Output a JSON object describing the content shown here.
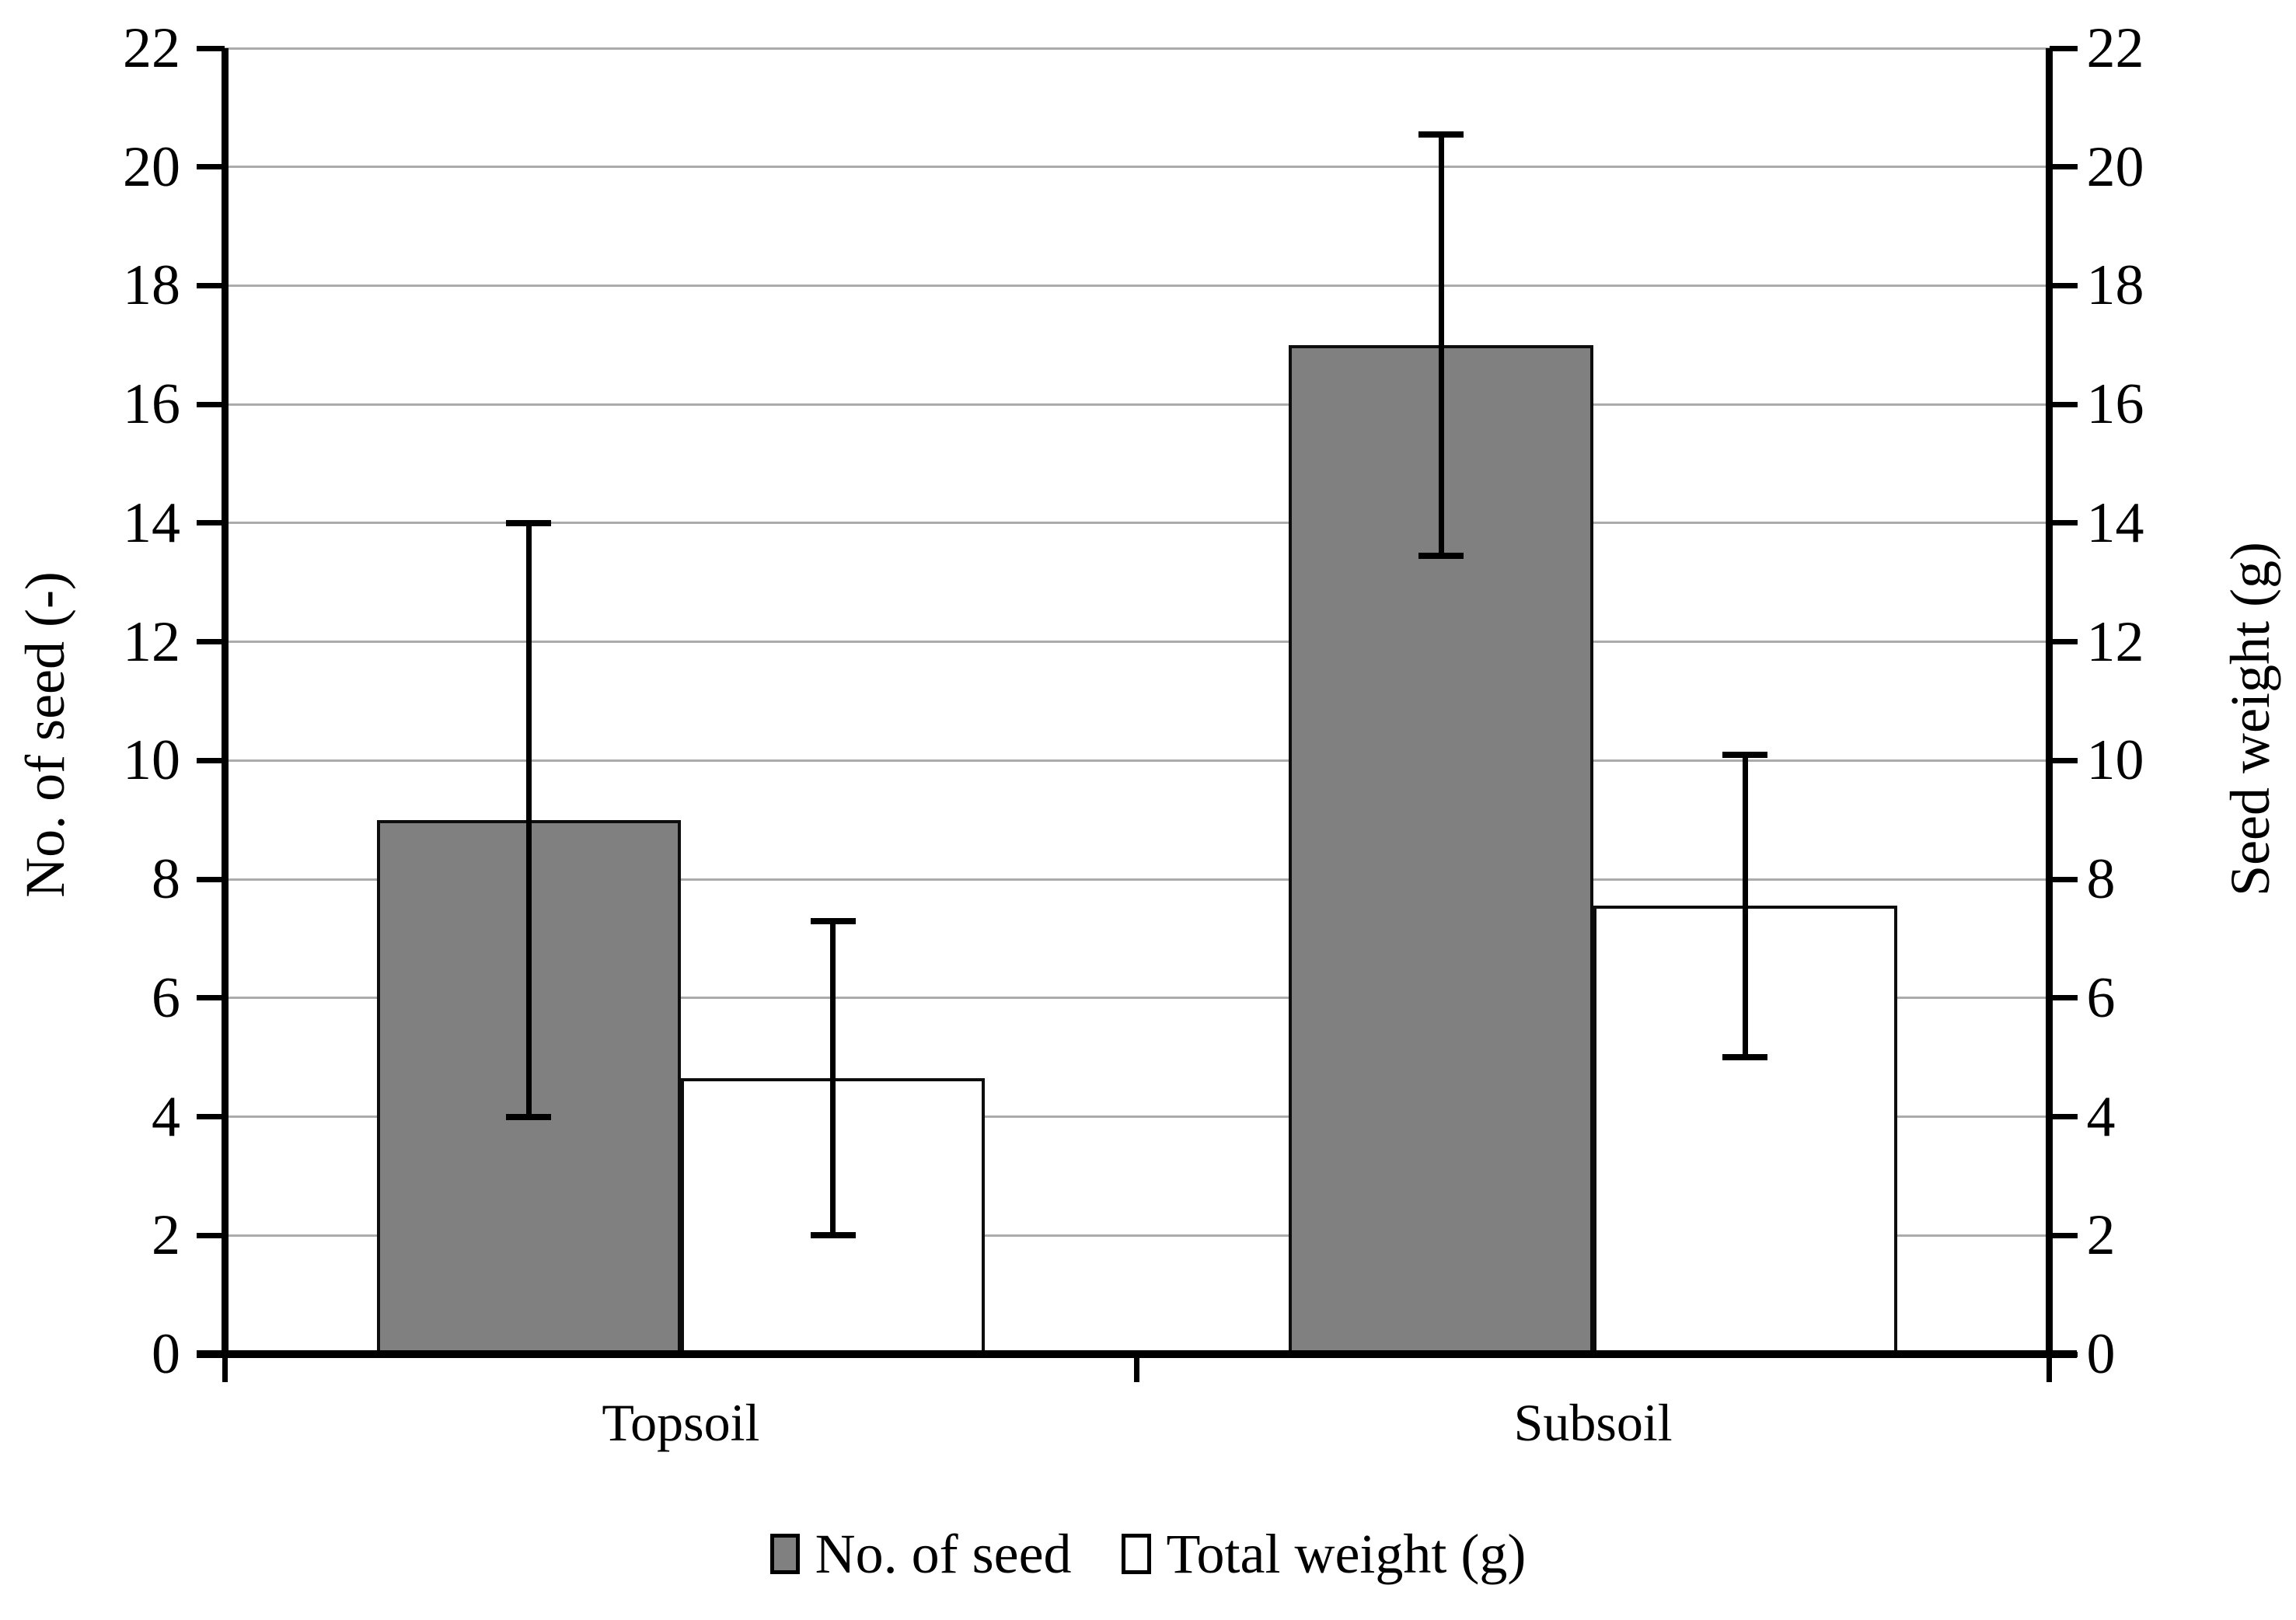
{
  "chart_data": {
    "type": "bar",
    "title": "",
    "categories": [
      "Topsoil",
      "Subsoil"
    ],
    "series": [
      {
        "name": "No. of seed",
        "axis": "left",
        "color": "#808080",
        "values": [
          9,
          17
        ],
        "errors": [
          5.0,
          3.55
        ]
      },
      {
        "name": "Total weight (g)",
        "axis": "right",
        "color": "#ffffff",
        "values": [
          4.65,
          7.55
        ],
        "errors": [
          2.65,
          2.55
        ]
      }
    ],
    "y_left": {
      "label": "No. of seed (-)",
      "min": 0,
      "max": 22,
      "tick_step": 2,
      "ticks": [
        0,
        2,
        4,
        6,
        8,
        10,
        12,
        14,
        16,
        18,
        20,
        22
      ]
    },
    "y_right": {
      "label": "Seed weight (g)",
      "min": 0,
      "max": 22,
      "tick_step": 2,
      "ticks": [
        0,
        2,
        4,
        6,
        8,
        10,
        12,
        14,
        16,
        18,
        20,
        22
      ]
    },
    "xlabel": "",
    "grid": true,
    "gridline_values": [
      2,
      4,
      6,
      8,
      10,
      12,
      14,
      16,
      18,
      20,
      22
    ],
    "legend_position": "bottom",
    "legend_labels": [
      "No. of seed",
      "Total weight (g)"
    ],
    "colors": {
      "bar_fill_seed": "#808080",
      "bar_fill_weight": "#ffffff",
      "bar_border": "#0d0d0d",
      "gridline": "#ababab",
      "axis": "#000000",
      "error_bar": "#000000",
      "text": "#000000",
      "background": "#ffffff"
    }
  }
}
